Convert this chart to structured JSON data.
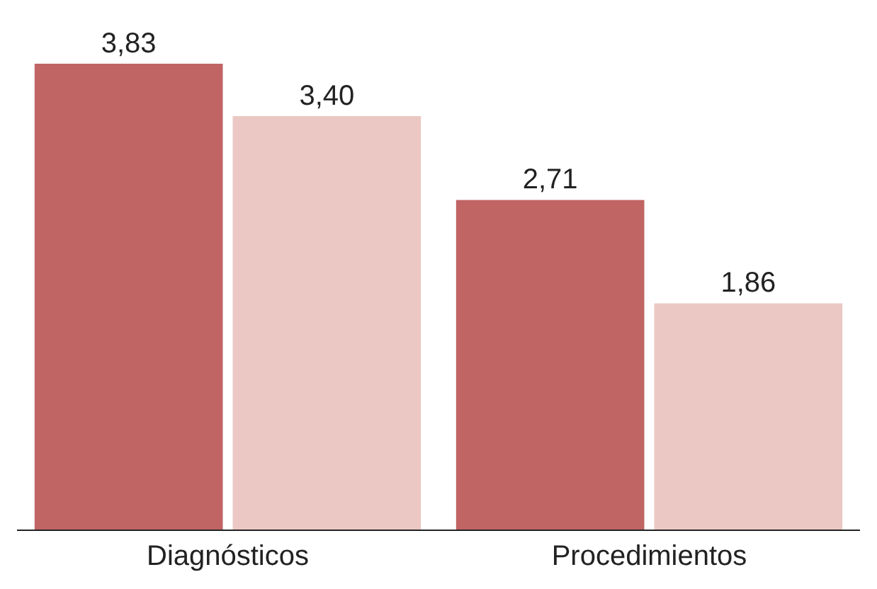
{
  "chart_data": {
    "type": "bar",
    "categories": [
      "Diagnósticos",
      "Procedimientos"
    ],
    "series": [
      {
        "color": "#c06464",
        "values": [
          3.83,
          2.71
        ],
        "value_labels": [
          "3,83",
          "2,71"
        ]
      },
      {
        "color": "#ebc8c3",
        "values": [
          3.4,
          1.86
        ],
        "value_labels": [
          "3,40",
          "1,86"
        ]
      }
    ],
    "tick_labels": "x"
  }
}
